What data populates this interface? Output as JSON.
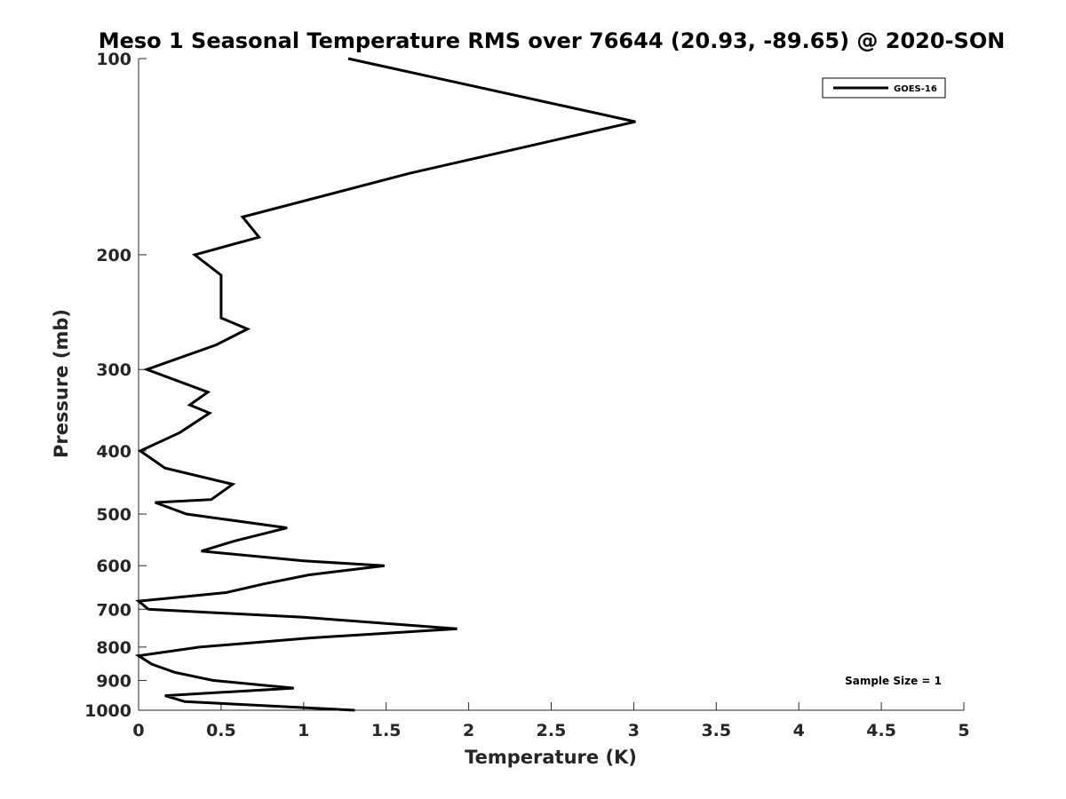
{
  "chart_data": {
    "type": "line",
    "title": "Meso 1 Seasonal Temperature RMS over 76644 (20.93, -89.65) @ 2020-SON",
    "xlabel": "Temperature (K)",
    "ylabel": "Pressure (mb)",
    "xlim": [
      0,
      5
    ],
    "ylim": [
      100,
      1000
    ],
    "y_scale": "log",
    "y_reversed": true,
    "grid": false,
    "legend_position": "top-right",
    "x_ticks": [
      "0",
      "0.5",
      "1",
      "1.5",
      "2",
      "2.5",
      "3",
      "3.5",
      "4",
      "4.5",
      "5"
    ],
    "y_ticks": [
      "100",
      "200",
      "300",
      "400",
      "500",
      "600",
      "700",
      "800",
      "900",
      "1000"
    ],
    "series": [
      {
        "name": "GOES-16",
        "color": "#000000",
        "points": [
          [
            1.27,
            100
          ],
          [
            3.01,
            125
          ],
          [
            1.64,
            150
          ],
          [
            0.63,
            175
          ],
          [
            0.73,
            188
          ],
          [
            0.34,
            200
          ],
          [
            0.5,
            215
          ],
          [
            0.5,
            250
          ],
          [
            0.66,
            260
          ],
          [
            0.47,
            275
          ],
          [
            0.05,
            300
          ],
          [
            0.42,
            325
          ],
          [
            0.31,
            340
          ],
          [
            0.43,
            350
          ],
          [
            0.25,
            375
          ],
          [
            0.01,
            400
          ],
          [
            0.16,
            425
          ],
          [
            0.57,
            450
          ],
          [
            0.44,
            475
          ],
          [
            0.1,
            480
          ],
          [
            0.29,
            500
          ],
          [
            0.9,
            525
          ],
          [
            0.58,
            550
          ],
          [
            0.38,
            570
          ],
          [
            1.0,
            590
          ],
          [
            1.49,
            600
          ],
          [
            1.03,
            620
          ],
          [
            0.76,
            640
          ],
          [
            0.53,
            660
          ],
          [
            0.0,
            680
          ],
          [
            0.06,
            700
          ],
          [
            1.0,
            720
          ],
          [
            1.93,
            750
          ],
          [
            1.03,
            775
          ],
          [
            0.37,
            800
          ],
          [
            0.0,
            825
          ],
          [
            0.08,
            850
          ],
          [
            0.22,
            875
          ],
          [
            0.45,
            900
          ],
          [
            0.94,
            925
          ],
          [
            0.16,
            950
          ],
          [
            0.28,
            970
          ],
          [
            1.31,
            1000
          ]
        ]
      }
    ],
    "annotation": "Sample Size = 1"
  }
}
